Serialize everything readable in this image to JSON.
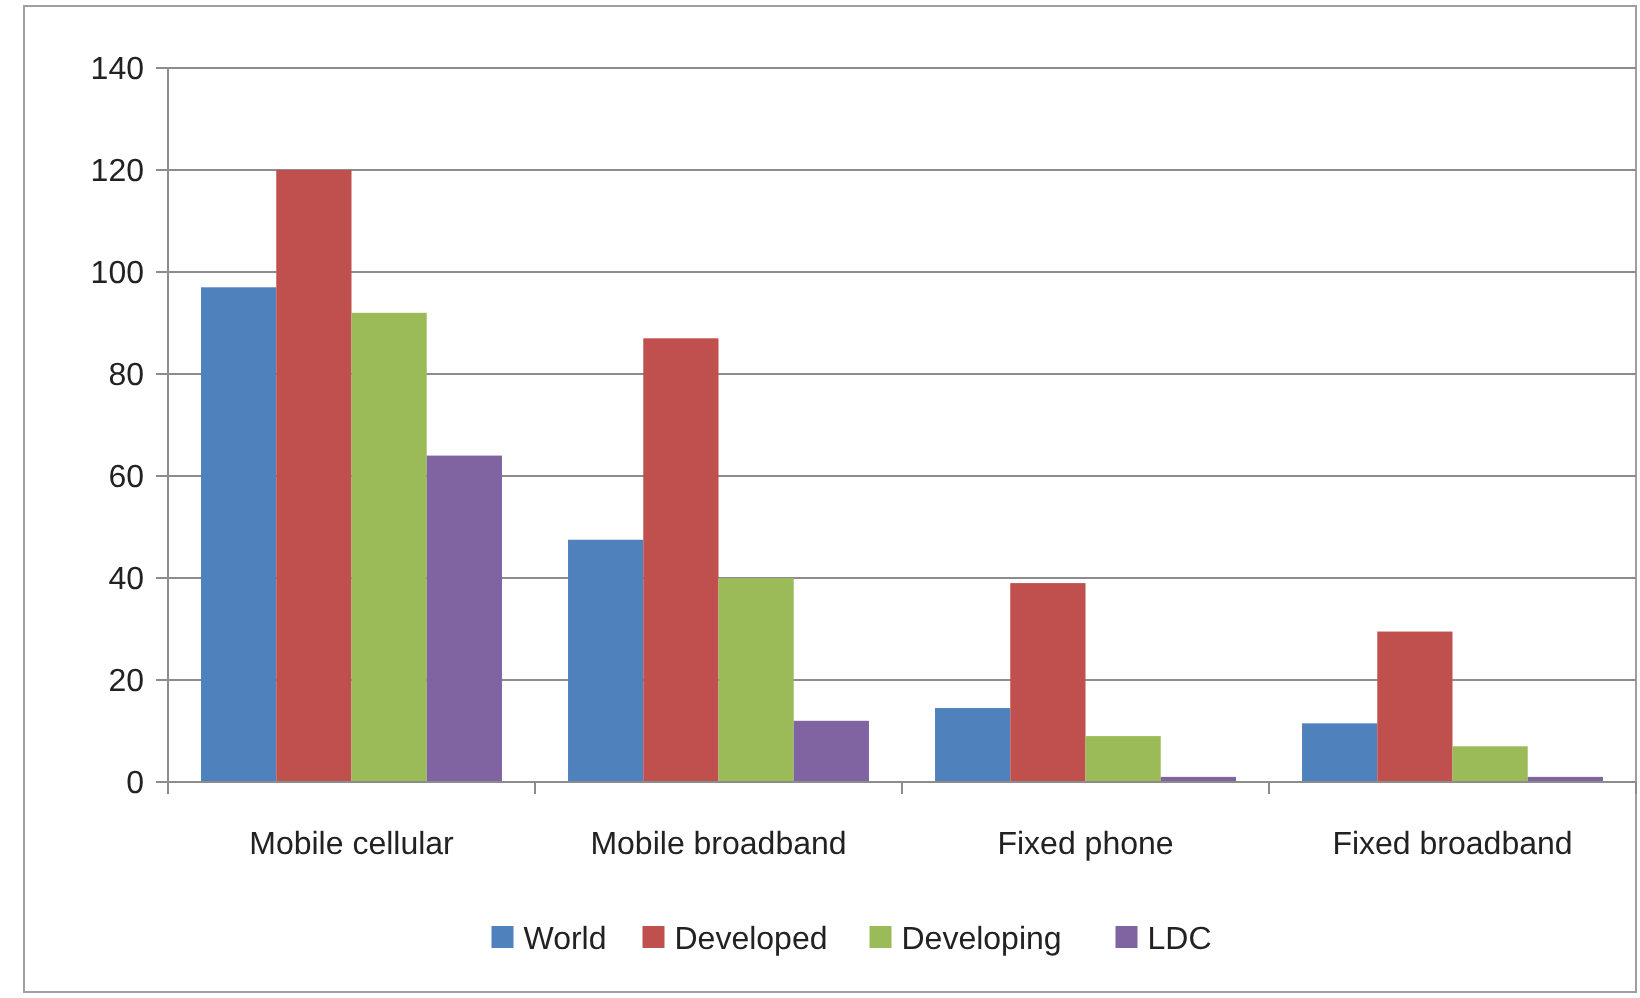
{
  "chart_data": {
    "type": "bar",
    "categories": [
      "Mobile cellular",
      "Mobile broadband",
      "Fixed phone",
      "Fixed broadband"
    ],
    "series": [
      {
        "name": "World",
        "color": "#4f81bd",
        "values": [
          97,
          47.5,
          14.5,
          11.5
        ]
      },
      {
        "name": "Developed",
        "color": "#c0504d",
        "values": [
          120,
          87,
          39,
          29.5
        ]
      },
      {
        "name": "Developing",
        "color": "#9bbb59",
        "values": [
          92,
          40,
          9,
          7
        ]
      },
      {
        "name": "LDC",
        "color": "#8064a2",
        "values": [
          64,
          12,
          1,
          1
        ]
      }
    ],
    "ylim": [
      0,
      140
    ],
    "yticks": [
      0,
      20,
      40,
      60,
      80,
      100,
      120,
      140
    ],
    "grid": "y",
    "legend": "bottom"
  }
}
